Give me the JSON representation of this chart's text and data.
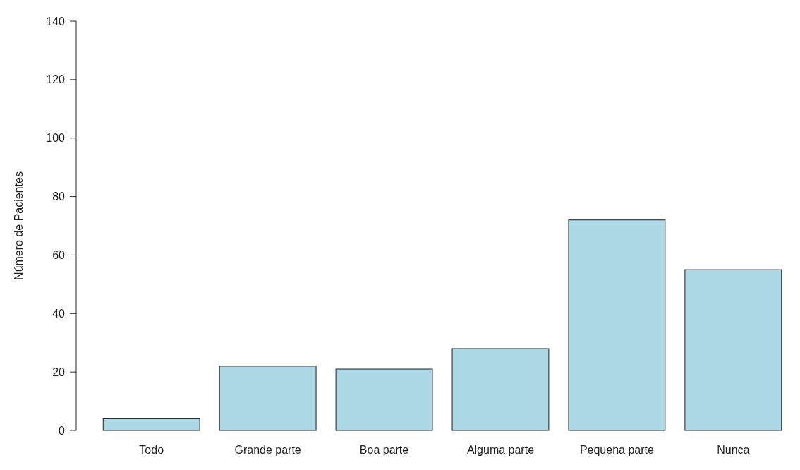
{
  "chart_data": {
    "type": "bar",
    "ylabel": "Número de Pacientes",
    "categories": [
      "Todo",
      "Grande parte",
      "Boa parte",
      "Alguma parte",
      "Pequena parte",
      "Nunca"
    ],
    "values": [
      4,
      22,
      21,
      28,
      72,
      55
    ],
    "color": "#add8e6",
    "ylim": [
      0,
      140
    ],
    "yticks": [
      0,
      20,
      40,
      60,
      80,
      100,
      120,
      140
    ],
    "grid": false
  }
}
